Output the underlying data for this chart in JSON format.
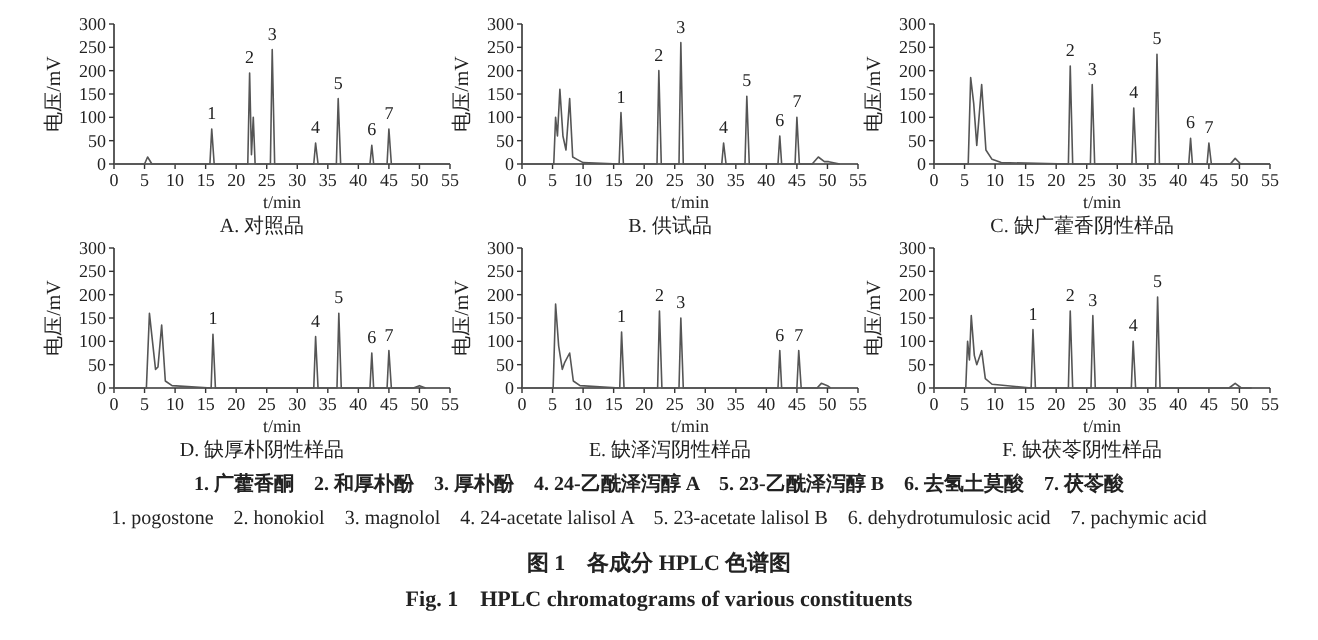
{
  "chart_data": [
    {
      "type": "line",
      "title": "A. 对照品",
      "xlabel": "t/min",
      "ylabel": "电压/mV",
      "xlim": [
        0,
        55
      ],
      "ylim": [
        0,
        300
      ],
      "xticks": [
        0,
        5,
        10,
        15,
        20,
        25,
        30,
        35,
        40,
        45,
        50,
        55
      ],
      "yticks": [
        0,
        50,
        100,
        150,
        200,
        250,
        300
      ],
      "color": "#555555",
      "x": [
        0,
        5,
        5.5,
        6.2,
        15.7,
        16,
        16.4,
        21.9,
        22.2,
        22.5,
        22.8,
        23.1,
        25.6,
        25.9,
        26.3,
        32.7,
        33,
        33.4,
        36.4,
        36.7,
        37.1,
        41.9,
        42.2,
        42.5,
        44.7,
        45,
        45.4,
        55
      ],
      "values": [
        0,
        0,
        15,
        0,
        0,
        75,
        0,
        0,
        195,
        20,
        100,
        0,
        0,
        245,
        0,
        0,
        45,
        0,
        0,
        140,
        0,
        0,
        40,
        0,
        0,
        75,
        0,
        0
      ],
      "annotations": [
        {
          "text": "1",
          "x": 16,
          "y": 75
        },
        {
          "text": "2",
          "x": 22.2,
          "y": 195
        },
        {
          "text": "3",
          "x": 25.9,
          "y": 245
        },
        {
          "text": "4",
          "x": 33,
          "y": 45
        },
        {
          "text": "5",
          "x": 36.7,
          "y": 140
        },
        {
          "text": "6",
          "x": 42.2,
          "y": 40
        },
        {
          "text": "7",
          "x": 45,
          "y": 75
        }
      ]
    },
    {
      "type": "line",
      "title": "B. 供试品",
      "xlabel": "t/min",
      "ylabel": "电压/mV",
      "xlim": [
        0,
        55
      ],
      "ylim": [
        0,
        300
      ],
      "xticks": [
        0,
        5,
        10,
        15,
        20,
        25,
        30,
        35,
        40,
        45,
        50,
        55
      ],
      "yticks": [
        0,
        50,
        100,
        150,
        200,
        250,
        300
      ],
      "color": "#555555",
      "x": [
        0,
        5.2,
        5.5,
        5.8,
        6.2,
        6.7,
        7.2,
        7.8,
        8.3,
        9,
        10,
        15.9,
        16.2,
        16.6,
        22.1,
        22.4,
        22.8,
        25.7,
        26,
        26.4,
        32.7,
        33,
        33.4,
        36.5,
        36.8,
        37.2,
        41.9,
        42.2,
        42.5,
        44.7,
        45,
        45.4,
        47.5,
        48.5,
        49.5,
        50.2,
        52
      ],
      "values": [
        0,
        0,
        100,
        60,
        160,
        60,
        30,
        140,
        15,
        10,
        3,
        0,
        110,
        0,
        0,
        200,
        0,
        0,
        260,
        0,
        0,
        45,
        0,
        0,
        145,
        0,
        0,
        60,
        0,
        0,
        100,
        0,
        0,
        15,
        5,
        5,
        0
      ],
      "annotations": [
        {
          "text": "1",
          "x": 16.2,
          "y": 110
        },
        {
          "text": "2",
          "x": 22.4,
          "y": 200
        },
        {
          "text": "3",
          "x": 26,
          "y": 260
        },
        {
          "text": "4",
          "x": 33,
          "y": 45
        },
        {
          "text": "5",
          "x": 36.8,
          "y": 145
        },
        {
          "text": "6",
          "x": 42.2,
          "y": 60
        },
        {
          "text": "7",
          "x": 45,
          "y": 100
        }
      ]
    },
    {
      "type": "line",
      "title": "C. 缺广藿香阴性样品",
      "xlabel": "t/min",
      "ylabel": "电压/mV",
      "xlim": [
        0,
        55
      ],
      "ylim": [
        0,
        300
      ],
      "xticks": [
        0,
        5,
        10,
        15,
        20,
        25,
        30,
        35,
        40,
        45,
        50,
        55
      ],
      "yticks": [
        0,
        50,
        100,
        150,
        200,
        250,
        300
      ],
      "color": "#555555",
      "x": [
        0,
        5.6,
        6,
        6.5,
        7,
        7.8,
        8.5,
        9.5,
        11,
        22,
        22.3,
        22.7,
        25.6,
        25.9,
        26.3,
        32.4,
        32.7,
        33.1,
        36.2,
        36.5,
        36.9,
        41.7,
        42,
        42.3,
        44.7,
        45,
        45.4,
        48.5,
        49.3,
        50.2,
        55
      ],
      "values": [
        0,
        0,
        185,
        130,
        40,
        170,
        30,
        10,
        3,
        0,
        210,
        0,
        0,
        170,
        0,
        0,
        120,
        0,
        0,
        235,
        0,
        0,
        55,
        0,
        0,
        45,
        0,
        0,
        12,
        0,
        0
      ],
      "annotations": [
        {
          "text": "2",
          "x": 22.3,
          "y": 210
        },
        {
          "text": "3",
          "x": 25.9,
          "y": 170
        },
        {
          "text": "4",
          "x": 32.7,
          "y": 120
        },
        {
          "text": "5",
          "x": 36.5,
          "y": 235
        },
        {
          "text": "6",
          "x": 42,
          "y": 55
        },
        {
          "text": "7",
          "x": 45,
          "y": 45
        }
      ]
    },
    {
      "type": "line",
      "title": "D. 缺厚朴阴性样品",
      "xlabel": "t/min",
      "ylabel": "电压/mV",
      "xlim": [
        0,
        55
      ],
      "ylim": [
        0,
        300
      ],
      "xticks": [
        0,
        5,
        10,
        15,
        20,
        25,
        30,
        35,
        40,
        45,
        50,
        55
      ],
      "yticks": [
        0,
        50,
        100,
        150,
        200,
        250,
        300
      ],
      "color": "#555555",
      "x": [
        0,
        5.3,
        5.8,
        6.3,
        6.8,
        7.2,
        7.8,
        8.4,
        9.5,
        15.9,
        16.2,
        16.6,
        32.7,
        33,
        33.4,
        36.5,
        36.8,
        37.2,
        41.9,
        42.2,
        42.5,
        44.7,
        45,
        45.4,
        49,
        50,
        51
      ],
      "values": [
        0,
        0,
        160,
        100,
        40,
        45,
        135,
        15,
        5,
        0,
        115,
        0,
        0,
        110,
        0,
        0,
        160,
        0,
        0,
        75,
        0,
        0,
        80,
        0,
        0,
        5,
        0
      ],
      "annotations": [
        {
          "text": "1",
          "x": 16.2,
          "y": 115
        },
        {
          "text": "4",
          "x": 33,
          "y": 110
        },
        {
          "text": "5",
          "x": 36.8,
          "y": 160
        },
        {
          "text": "6",
          "x": 42.2,
          "y": 75
        },
        {
          "text": "7",
          "x": 45,
          "y": 80
        }
      ]
    },
    {
      "type": "line",
      "title": "E. 缺泽泻阴性样品",
      "xlabel": "t/min",
      "ylabel": "电压/mV",
      "xlim": [
        0,
        55
      ],
      "ylim": [
        0,
        300
      ],
      "xticks": [
        0,
        5,
        10,
        15,
        20,
        25,
        30,
        35,
        40,
        45,
        50,
        55
      ],
      "yticks": [
        0,
        50,
        100,
        150,
        200,
        250,
        300
      ],
      "color": "#555555",
      "x": [
        0,
        5.1,
        5.5,
        6,
        6.6,
        7,
        7.8,
        8.4,
        9.5,
        16,
        16.3,
        16.7,
        22.2,
        22.5,
        22.9,
        25.7,
        26,
        26.4,
        41.9,
        42.2,
        42.5,
        45,
        45.3,
        45.7,
        48.3,
        49,
        50,
        50.5
      ],
      "values": [
        0,
        0,
        180,
        90,
        40,
        55,
        75,
        15,
        5,
        0,
        120,
        0,
        0,
        165,
        0,
        0,
        150,
        0,
        0,
        80,
        0,
        0,
        80,
        0,
        0,
        10,
        5,
        0
      ],
      "annotations": [
        {
          "text": "1",
          "x": 16.3,
          "y": 120
        },
        {
          "text": "2",
          "x": 22.5,
          "y": 165
        },
        {
          "text": "3",
          "x": 26,
          "y": 150
        },
        {
          "text": "6",
          "x": 42.2,
          "y": 80
        },
        {
          "text": "7",
          "x": 45.3,
          "y": 80
        }
      ]
    },
    {
      "type": "line",
      "title": "F. 缺茯苓阴性样品",
      "xlabel": "t/min",
      "ylabel": "电压/mV",
      "xlim": [
        0,
        55
      ],
      "ylim": [
        0,
        300
      ],
      "xticks": [
        0,
        5,
        10,
        15,
        20,
        25,
        30,
        35,
        40,
        45,
        50,
        55
      ],
      "yticks": [
        0,
        50,
        100,
        150,
        200,
        250,
        300
      ],
      "color": "#555555",
      "x": [
        0,
        5.2,
        5.5,
        5.8,
        6.1,
        6.6,
        7,
        7.8,
        8.4,
        9.5,
        15.9,
        16.2,
        16.6,
        22,
        22.3,
        22.7,
        25.7,
        26,
        26.4,
        32.3,
        32.6,
        33,
        36.3,
        36.6,
        37,
        48.3,
        49.3,
        50.3,
        52
      ],
      "values": [
        0,
        0,
        100,
        60,
        155,
        70,
        50,
        80,
        20,
        8,
        0,
        125,
        0,
        0,
        165,
        0,
        0,
        155,
        0,
        0,
        100,
        0,
        0,
        195,
        0,
        0,
        10,
        0,
        0
      ],
      "annotations": [
        {
          "text": "1",
          "x": 16.2,
          "y": 125
        },
        {
          "text": "2",
          "x": 22.3,
          "y": 165
        },
        {
          "text": "3",
          "x": 26,
          "y": 155
        },
        {
          "text": "4",
          "x": 32.6,
          "y": 100
        },
        {
          "text": "5",
          "x": 36.6,
          "y": 195
        }
      ]
    },
    {
      "type": "other",
      "annotations": [
        "1. 广藿香酮　2. 和厚朴酚　3. 厚朴酚　4. 24-乙酰泽泻醇 A　5. 23-乙酰泽泻醇 B　6. 去氢土莫酸　7. 茯苓酸",
        "1. pogostone　2. honokiol　3. magnolol　4. 24-acetate lalisol A　5. 23-acetate lalisol B　6. dehydrotumulosic acid　7. pachymic acid",
        "图 1　各成分 HPLC 色谱图",
        "Fig. 1　HPLC chromatograms of various constituents"
      ]
    }
  ]
}
